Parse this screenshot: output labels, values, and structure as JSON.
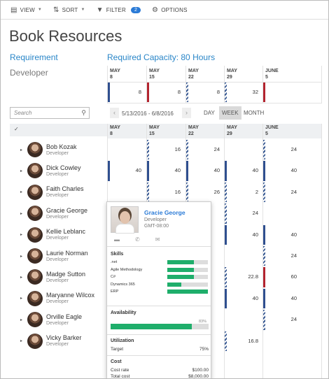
{
  "toolbar": {
    "view_label": "VIEW",
    "sort_label": "SORT",
    "filter_label": "FILTER",
    "filter_count": "2",
    "options_label": "OPTIONS"
  },
  "page": {
    "title": "Book Resources",
    "requirement_label": "Requirement",
    "requirement_value": "Developer",
    "required_capacity": "Required Capacity: 80 Hours"
  },
  "requirement_grid": {
    "columns": [
      {
        "month": "MAY",
        "day": "8",
        "value": "8"
      },
      {
        "month": "MAY",
        "day": "15",
        "value": "8"
      },
      {
        "month": "MAY",
        "day": "22",
        "value": "8"
      },
      {
        "month": "MAY",
        "day": "29",
        "value": "32"
      },
      {
        "month": "JUNE",
        "day": "5",
        "value": ""
      }
    ]
  },
  "search": {
    "placeholder": "Search"
  },
  "date_nav": {
    "prev": "‹",
    "next": "›",
    "range": "5/13/2016 - 6/8/2016"
  },
  "view_tabs": {
    "day": "DAY",
    "week": "WEEK",
    "month": "MONTH",
    "active": "WEEK"
  },
  "select_all_glyph": "✓",
  "resource_grid": {
    "columns": [
      {
        "month": "MAY",
        "day": "8"
      },
      {
        "month": "MAY",
        "day": "15"
      },
      {
        "month": "MAY",
        "day": "22"
      },
      {
        "month": "MAY",
        "day": "29"
      },
      {
        "month": "JUNE",
        "day": "5"
      }
    ],
    "rows": [
      {
        "name": "Bob Kozak",
        "role": "Developer",
        "values": [
          "",
          "16",
          "24",
          "",
          "24"
        ]
      },
      {
        "name": "Dick Cowley",
        "role": "Developer",
        "values": [
          "40",
          "40",
          "40",
          "40",
          "40"
        ]
      },
      {
        "name": "Faith Charles",
        "role": "Developer",
        "values": [
          "",
          "16",
          "26",
          "2",
          "24"
        ]
      },
      {
        "name": "Gracie George",
        "role": "Developer",
        "values": [
          "",
          "",
          "",
          "24",
          ""
        ]
      },
      {
        "name": "Kellie Leblanc",
        "role": "Developer",
        "values": [
          "",
          "",
          "",
          "40",
          "40"
        ]
      },
      {
        "name": "Laurie Norman",
        "role": "Developer",
        "values": [
          "",
          "",
          "",
          "",
          "24"
        ]
      },
      {
        "name": "Madge Sutton",
        "role": "Developer",
        "values": [
          "",
          "",
          "",
          "22.8",
          "60"
        ]
      },
      {
        "name": "Maryanne Wilcox",
        "role": "Developer",
        "values": [
          "",
          "",
          "",
          "40",
          "40"
        ]
      },
      {
        "name": "Orville Eagle",
        "role": "Developer",
        "values": [
          "",
          "",
          "",
          "",
          "24"
        ]
      },
      {
        "name": "Vicky Barker",
        "role": "Developer",
        "values": [
          "",
          "",
          "",
          "16.8",
          ""
        ]
      }
    ]
  },
  "card": {
    "name": "Gracie George",
    "role": "Developer",
    "timezone": "GMT-08:00",
    "skills_title": "Skills",
    "skills": [
      {
        "name": ".net",
        "level": 0.65
      },
      {
        "name": "Agile Methodology",
        "level": 0.65
      },
      {
        "name": "C#",
        "level": 0.65
      },
      {
        "name": "Dynamics 365",
        "level": 0.35
      },
      {
        "name": "ERP",
        "level": 1.0
      }
    ],
    "availability_title": "Availability",
    "availability_percent": "83%",
    "availability_value": 0.83,
    "utilization_title": "Utilization",
    "target_label": "Target",
    "target_value": "75%",
    "cost_title": "Cost",
    "cost_rate_label": "Cost rate",
    "cost_rate_value": "$100.00",
    "total_cost_label": "Total cost",
    "total_cost_value": "$8,000.00"
  },
  "colors": {
    "accent": "#2a7ad6",
    "bar_blue": "#2f4f8f",
    "bar_red": "#b3242f",
    "skill_green": "#1fae6b"
  }
}
